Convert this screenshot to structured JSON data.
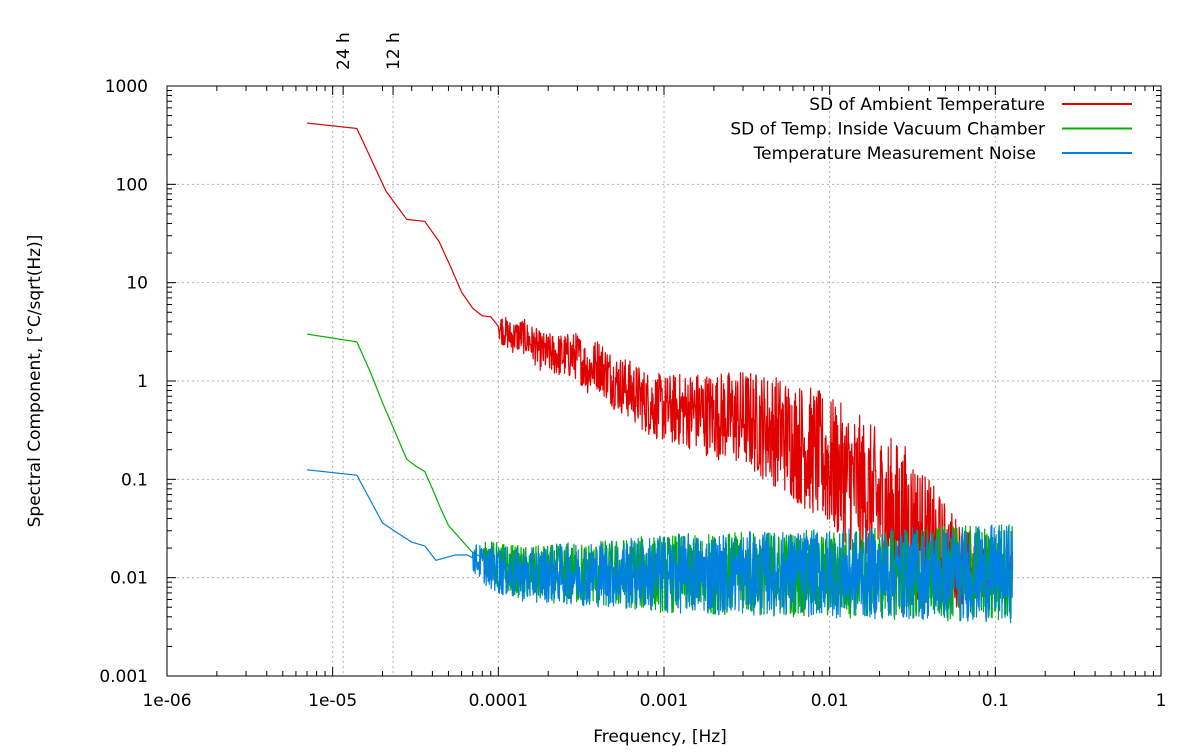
{
  "chart_data": {
    "type": "line",
    "x_scale": "log",
    "y_scale": "log",
    "xlim": [
      1e-06,
      1
    ],
    "ylim": [
      0.001,
      1000
    ],
    "xlabel": "Frequency, [Hz]",
    "ylabel": "Spectral Component, [°C/sqrt(Hz)]",
    "grid": true,
    "legend_position": "top-right",
    "x_ticks": [
      {
        "value": 1e-06,
        "label": "1e-06"
      },
      {
        "value": 1e-05,
        "label": "1e-05"
      },
      {
        "value": 0.0001,
        "label": "0.0001"
      },
      {
        "value": 0.001,
        "label": "0.001"
      },
      {
        "value": 0.01,
        "label": "0.01"
      },
      {
        "value": 0.1,
        "label": "0.1"
      },
      {
        "value": 1,
        "label": "1"
      }
    ],
    "y_ticks": [
      {
        "value": 1000,
        "label": "1000"
      },
      {
        "value": 100,
        "label": "100"
      },
      {
        "value": 10,
        "label": "10"
      },
      {
        "value": 1,
        "label": "1"
      },
      {
        "value": 0.1,
        "label": "0.1"
      },
      {
        "value": 0.01,
        "label": "0.01"
      },
      {
        "value": 0.001,
        "label": "0.001"
      }
    ],
    "top_ticks": [
      {
        "value": 1.157e-05,
        "label": "24 h"
      },
      {
        "value": 2.315e-05,
        "label": "12 h"
      }
    ],
    "series": [
      {
        "name": "SD of Ambient Temperature",
        "color": "#e00000",
        "noise_points": [
          [
            0.0001,
            0.15
          ],
          [
            0.001,
            0.35
          ],
          [
            0.003,
            0.5
          ],
          [
            0.01,
            0.7
          ],
          [
            0.03,
            0.8
          ],
          [
            0.06,
            0.45
          ],
          [
            0.1,
            0.2
          ],
          [
            0.127,
            0.2
          ]
        ],
        "points": [
          [
            7e-06,
            420
          ],
          [
            1.4e-05,
            370
          ],
          [
            2.1e-05,
            85
          ],
          [
            2.8e-05,
            44
          ],
          [
            3.6e-05,
            42
          ],
          [
            4.4e-05,
            26
          ],
          [
            5.2e-05,
            14
          ],
          [
            6e-05,
            8
          ],
          [
            7e-05,
            5.5
          ],
          [
            8e-05,
            4.6
          ],
          [
            9e-05,
            4.5
          ],
          [
            0.0001,
            3.6
          ],
          [
            0.00012,
            2.8
          ],
          [
            0.00014,
            2.9
          ],
          [
            0.00016,
            2.4
          ],
          [
            0.00018,
            2.0
          ],
          [
            0.0002,
            1.9
          ],
          [
            0.00025,
            1.8
          ],
          [
            0.0003,
            1.8
          ],
          [
            0.00035,
            1.3
          ],
          [
            0.0004,
            1.5
          ],
          [
            0.0005,
            1.0
          ],
          [
            0.0006,
            0.85
          ],
          [
            0.0007,
            0.7
          ],
          [
            0.0008,
            0.6
          ],
          [
            0.001,
            0.52
          ],
          [
            0.0015,
            0.5
          ],
          [
            0.002,
            0.45
          ],
          [
            0.003,
            0.42
          ],
          [
            0.004,
            0.35
          ],
          [
            0.005,
            0.3
          ],
          [
            0.006,
            0.25
          ],
          [
            0.008,
            0.19
          ],
          [
            0.01,
            0.14
          ],
          [
            0.015,
            0.085
          ],
          [
            0.02,
            0.055
          ],
          [
            0.03,
            0.035
          ],
          [
            0.04,
            0.022
          ],
          [
            0.05,
            0.017
          ],
          [
            0.06,
            0.014
          ],
          [
            0.08,
            0.012
          ],
          [
            0.1,
            0.0115
          ],
          [
            0.127,
            0.011
          ]
        ]
      },
      {
        "name": "SD of Temp. Inside Vacuum Chamber",
        "color": "#00b000",
        "noise_points": [
          [
            8e-05,
            0.15
          ],
          [
            0.0001,
            0.25
          ],
          [
            0.001,
            0.4
          ],
          [
            0.01,
            0.45
          ],
          [
            0.127,
            0.5
          ]
        ],
        "points": [
          [
            7e-06,
            3.0
          ],
          [
            1.4e-05,
            2.5
          ],
          [
            1.7e-05,
            1.2
          ],
          [
            2e-05,
            0.6
          ],
          [
            2.5e-05,
            0.25
          ],
          [
            2.8e-05,
            0.16
          ],
          [
            3.2e-05,
            0.135
          ],
          [
            3.6e-05,
            0.12
          ],
          [
            4e-05,
            0.08
          ],
          [
            4.5e-05,
            0.05
          ],
          [
            5e-05,
            0.034
          ],
          [
            6e-05,
            0.024
          ],
          [
            7e-05,
            0.018
          ],
          [
            8e-05,
            0.016
          ],
          [
            9e-05,
            0.015
          ],
          [
            0.0001,
            0.013
          ],
          [
            0.00012,
            0.012
          ],
          [
            0.00015,
            0.011
          ],
          [
            0.0002,
            0.011
          ],
          [
            0.0003,
            0.011
          ],
          [
            0.0005,
            0.011
          ],
          [
            0.001,
            0.011
          ],
          [
            0.01,
            0.011
          ],
          [
            0.127,
            0.011
          ]
        ]
      },
      {
        "name": "Temperature Measurement Noise",
        "color": "#0080e0",
        "noise_points": [
          [
            7e-05,
            0.15
          ],
          [
            0.0001,
            0.25
          ],
          [
            0.001,
            0.4
          ],
          [
            0.01,
            0.45
          ],
          [
            0.127,
            0.5
          ]
        ],
        "points": [
          [
            7e-06,
            0.125
          ],
          [
            1.4e-05,
            0.11
          ],
          [
            1.7e-05,
            0.06
          ],
          [
            2e-05,
            0.036
          ],
          [
            2.5e-05,
            0.028
          ],
          [
            3e-05,
            0.023
          ],
          [
            3.6e-05,
            0.021
          ],
          [
            4.2e-05,
            0.015
          ],
          [
            4.8e-05,
            0.016
          ],
          [
            5.5e-05,
            0.017
          ],
          [
            6.5e-05,
            0.017
          ],
          [
            7.5e-05,
            0.015
          ],
          [
            8.5e-05,
            0.013
          ],
          [
            0.0001,
            0.012
          ],
          [
            0.00012,
            0.011
          ],
          [
            0.00015,
            0.0105
          ],
          [
            0.0002,
            0.011
          ],
          [
            0.0003,
            0.011
          ],
          [
            0.0005,
            0.011
          ],
          [
            0.001,
            0.011
          ],
          [
            0.01,
            0.011
          ],
          [
            0.127,
            0.011
          ]
        ]
      }
    ]
  }
}
